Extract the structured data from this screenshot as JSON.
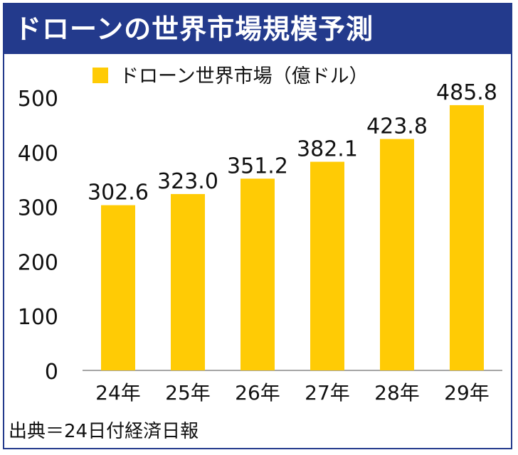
{
  "header": {
    "title": "ドローンの世界市場規模予測"
  },
  "source": "出典＝24日付経済日報",
  "colors": {
    "header_bg": "#233a8c",
    "bar": "#ffcb05",
    "text": "#111111"
  },
  "chart_data": {
    "type": "bar",
    "categories": [
      "24年",
      "25年",
      "26年",
      "27年",
      "28年",
      "29年"
    ],
    "series": [
      {
        "name": "ドローン世界市場（億ドル）",
        "values": [
          302.6,
          323.0,
          351.2,
          382.1,
          423.8,
          485.8
        ]
      }
    ],
    "data_labels": [
      "302.6",
      "323.0",
      "351.2",
      "382.1",
      "423.8",
      "485.8"
    ],
    "y_ticks": [
      "0",
      "100",
      "200",
      "300",
      "400",
      "500"
    ],
    "ylim": [
      0,
      500
    ],
    "grid": false,
    "legend_position": "top"
  }
}
